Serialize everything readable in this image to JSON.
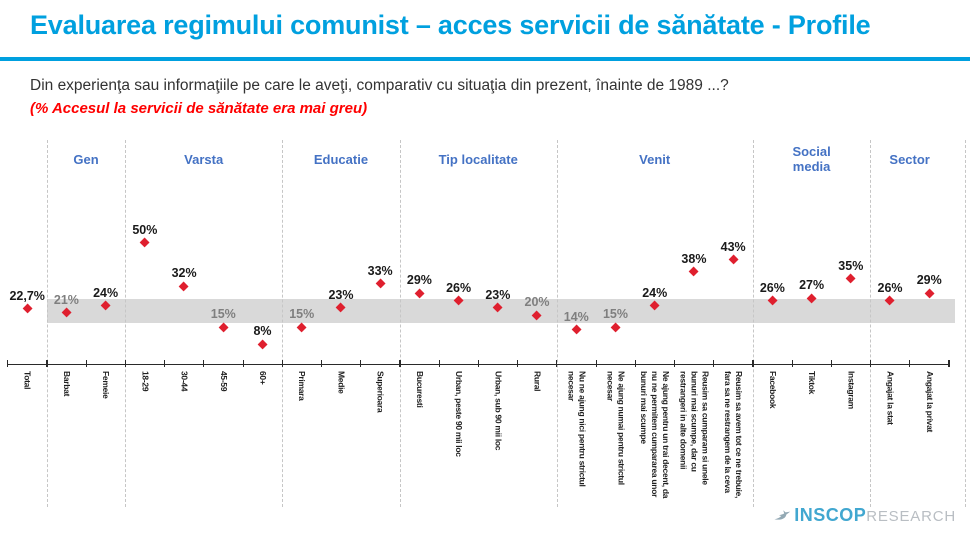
{
  "header": {
    "title": "Evaluarea regimului comunist – acces servicii de sănătate - Profile",
    "question": "Din experienţa sau informaţiile pe care le aveţi, comparativ cu situaţia din prezent, înainte de 1989 ...?",
    "note": "(% Accesul la servicii de sănătate era mai greu)"
  },
  "chart_data": {
    "type": "scatter",
    "marker": "diamond",
    "ylim": [
      0,
      55
    ],
    "grid": false,
    "reference_band": {
      "low": 17,
      "high": 27,
      "color": "#d9d9d9"
    },
    "groups": [
      {
        "label": "",
        "points": [
          {
            "category": "Total",
            "value": 22.7,
            "text": "22,7%",
            "muted": false
          }
        ]
      },
      {
        "label": "Gen",
        "points": [
          {
            "category": "Barbat",
            "value": 21,
            "text": "21%",
            "muted": true
          },
          {
            "category": "Femeie",
            "value": 24,
            "text": "24%",
            "muted": false
          }
        ]
      },
      {
        "label": "Varsta",
        "points": [
          {
            "category": "18-29",
            "value": 50,
            "text": "50%",
            "muted": false
          },
          {
            "category": "30-44",
            "value": 32,
            "text": "32%",
            "muted": false
          },
          {
            "category": "45-59",
            "value": 15,
            "text": "15%",
            "muted": true
          },
          {
            "category": "60+",
            "value": 8,
            "text": "8%",
            "muted": false
          }
        ]
      },
      {
        "label": "Educatie",
        "points": [
          {
            "category": "Primara",
            "value": 15,
            "text": "15%",
            "muted": true
          },
          {
            "category": "Medie",
            "value": 23,
            "text": "23%",
            "muted": false
          },
          {
            "category": "Superioara",
            "value": 33,
            "text": "33%",
            "muted": false
          }
        ]
      },
      {
        "label": "Tip localitate",
        "points": [
          {
            "category": "Bucuresti",
            "value": 29,
            "text": "29%",
            "muted": false
          },
          {
            "category": "Urban, peste 90 mii loc",
            "value": 26,
            "text": "26%",
            "muted": false
          },
          {
            "category": "Urban, sub 90 mii loc",
            "value": 23,
            "text": "23%",
            "muted": false
          },
          {
            "category": "Rural",
            "value": 20,
            "text": "20%",
            "muted": true
          }
        ]
      },
      {
        "label": "Venit",
        "points": [
          {
            "category": "Nu ne ajung nici pentru strictul\nnecesar",
            "value": 14,
            "text": "14%",
            "muted": true
          },
          {
            "category": "Ne ajung numai pentru strictul\nnecesar",
            "value": 15,
            "text": "15%",
            "muted": true
          },
          {
            "category": "Ne ajung pentru un trai decent, da\nnu ne permitem cumpararea unor\nbunuri mai scumpe",
            "value": 24,
            "text": "24%",
            "muted": false
          },
          {
            "category": "Reusim sa cumparam si unele\nbunuri mai scumpe, dar cu\nrestrangeri in alte domenii",
            "value": 38,
            "text": "38%",
            "muted": false
          },
          {
            "category": "Reusim sa avem tot ce ne trebuie,\nfara sa ne restrangem de la ceva",
            "value": 43,
            "text": "43%",
            "muted": false
          }
        ]
      },
      {
        "label": "Social\nmedia",
        "points": [
          {
            "category": "Facebook",
            "value": 26,
            "text": "26%",
            "muted": false
          },
          {
            "category": "Tiktok",
            "value": 27,
            "text": "27%",
            "muted": false
          },
          {
            "category": "Instagram",
            "value": 35,
            "text": "35%",
            "muted": false
          }
        ]
      },
      {
        "label": "Sector",
        "points": [
          {
            "category": "Angajat la stat",
            "value": 26,
            "text": "26%",
            "muted": false
          },
          {
            "category": "Angajat la privat",
            "value": 29,
            "text": "29%",
            "muted": false
          }
        ]
      }
    ]
  },
  "colors": {
    "accent": "#00a0df",
    "group_header": "#4472c4",
    "dot": "#df1f2e",
    "band": "#d9d9d9",
    "muted_label": "#7f7f7f",
    "note": "#ff0000",
    "logo_blue": "#41a7d0",
    "logo_gray": "#b9bec3"
  },
  "logo": {
    "name": "INSCOP",
    "suffix": "RESEARCH"
  }
}
